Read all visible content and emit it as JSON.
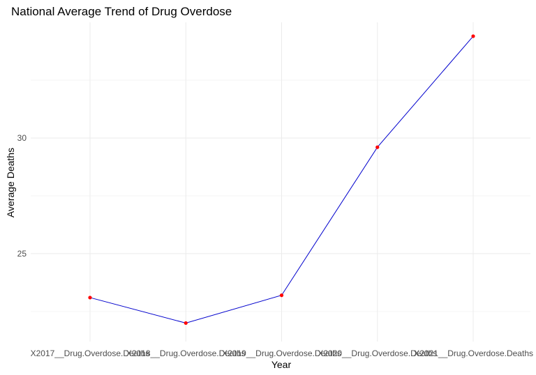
{
  "chart_data": {
    "type": "line",
    "title": "National Average Trend of Drug Overdose",
    "xlabel": "Year",
    "ylabel": "Average Deaths",
    "categories": [
      "X2017__Drug.Overdose.Deaths",
      "X2018__Drug.Overdose.Deaths",
      "X2019__Drug.Overdose.Deaths",
      "X2020__Drug.Overdose.Deaths",
      "X2021__Drug.Overdose.Deaths"
    ],
    "series": [
      {
        "values": [
          23.1,
          22.0,
          23.2,
          29.6,
          34.4
        ],
        "line_color": "#0000cd",
        "point_color": "#ff0000"
      }
    ],
    "yticks": [
      25,
      30
    ],
    "ylim": [
      21.2,
      35.0
    ],
    "grid": true,
    "legend": "none"
  }
}
